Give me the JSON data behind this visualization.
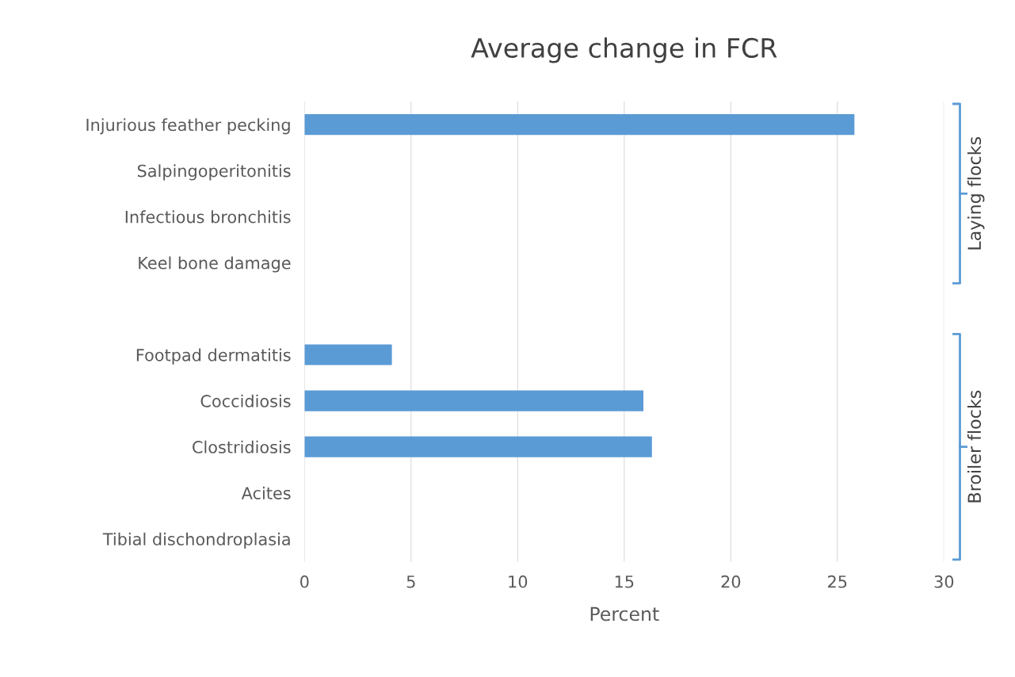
{
  "chart_data": {
    "type": "bar",
    "orientation": "horizontal",
    "title": "Average change in FCR",
    "xlabel": "Percent",
    "categories": [
      "Injurious feather pecking",
      "Salpingoperitonitis",
      "Infectious bronchitis",
      "Keel bone damage",
      null,
      "Footpad dermatitis",
      "Coccidiosis",
      "Clostridiosis",
      "Acites",
      "Tibial dischondroplasia"
    ],
    "values": [
      25.8,
      null,
      null,
      null,
      null,
      4.1,
      15.9,
      16.3,
      null,
      null
    ],
    "color": "#5b9bd5",
    "xlim": [
      0,
      30
    ],
    "xticks": [
      0,
      5,
      10,
      15,
      20,
      25,
      30
    ],
    "grid": "x",
    "legend": false,
    "annotations": [
      "Laying flocks",
      "Broiler flocks"
    ]
  }
}
